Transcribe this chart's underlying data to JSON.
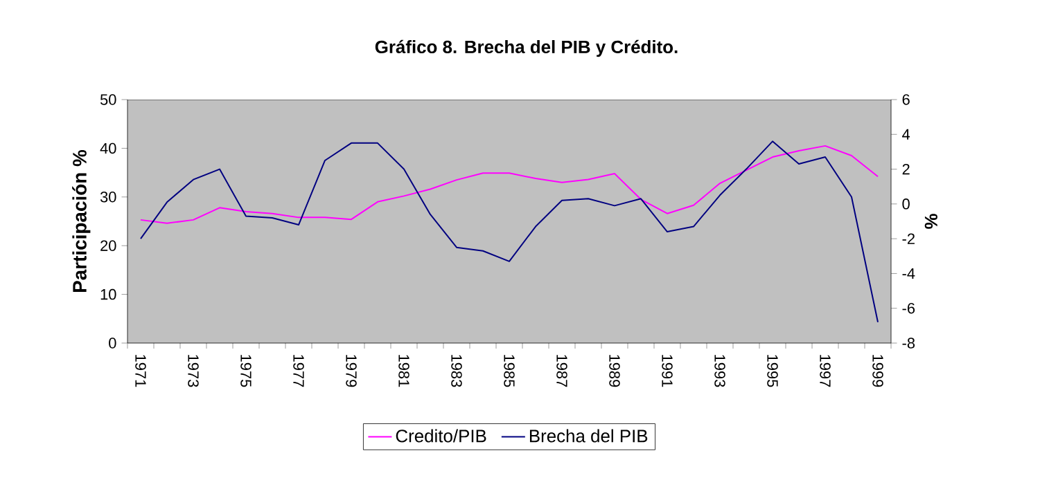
{
  "chart_data": {
    "type": "line",
    "title": "Gráfico 8. Brecha del PIB y Crédito.",
    "ylabel": "Participación %",
    "y2label": "%",
    "categories": [
      "1971",
      null,
      "1973",
      null,
      "1975",
      null,
      "1977",
      null,
      "1979",
      null,
      "1981",
      null,
      "1983",
      null,
      "1985",
      null,
      "1987",
      null,
      "1989",
      null,
      "1991",
      null,
      "1993",
      null,
      "1995",
      null,
      "1997",
      null,
      "1999"
    ],
    "series": [
      {
        "name": "Credito/PIB",
        "color": "#ff00ff",
        "values": [
          25.3,
          24.6,
          25.3,
          27.8,
          27.0,
          26.6,
          25.8,
          25.8,
          25.4,
          29.0,
          30.2,
          31.6,
          33.5,
          34.9,
          34.9,
          33.8,
          33.0,
          33.6,
          34.8,
          29.5,
          26.6,
          28.3,
          32.8,
          35.5,
          38.2,
          39.5,
          40.5,
          38.5,
          34.2
        ]
      },
      {
        "name": "Brecha del PIB",
        "color": "#000080",
        "axis": "y2",
        "values": [
          -2.0,
          0.1,
          1.4,
          2.0,
          -0.7,
          -0.8,
          -1.2,
          2.5,
          3.5,
          3.5,
          2.0,
          -0.6,
          -2.5,
          -2.7,
          -3.3,
          -1.3,
          0.2,
          0.3,
          -0.1,
          0.3,
          -1.6,
          -1.3,
          0.5,
          2.0,
          3.6,
          2.3,
          2.7,
          0.4,
          -6.8
        ]
      }
    ],
    "ylim": [
      0,
      50
    ],
    "yticks": [
      0,
      10,
      20,
      30,
      40,
      50
    ],
    "y2lim": [
      -8,
      6
    ],
    "y2ticks": [
      -8,
      -6,
      -4,
      -2,
      0,
      2,
      4,
      6
    ],
    "grid": false,
    "legend": "bottom",
    "marker": "none",
    "line_style": "solid"
  }
}
